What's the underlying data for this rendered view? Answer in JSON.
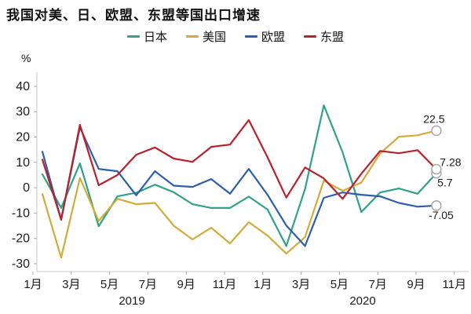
{
  "title": "我国对美、日、欧盟、东盟等国出口增速",
  "chart_data": {
    "type": "line",
    "y_unit": "%",
    "ylim": [
      -30,
      40
    ],
    "y_ticks": [
      40,
      30,
      20,
      10,
      0,
      -10,
      -20,
      -30
    ],
    "x_tick_labels": [
      "1月",
      "3月",
      "5月",
      "7月",
      "9月",
      "11月",
      "1月",
      "3月",
      "5月",
      "7月",
      "9月",
      "11月"
    ],
    "year_labels": [
      "2019",
      "2020"
    ],
    "grid": "off",
    "legend_position": "top-center",
    "categories": [
      "2019-01",
      "2019-02",
      "2019-03",
      "2019-04",
      "2019-05",
      "2019-06",
      "2019-07",
      "2019-08",
      "2019-09",
      "2019-10",
      "2019-11",
      "2019-12",
      "2020-01",
      "2020-02",
      "2020-03",
      "2020-04",
      "2020-05",
      "2020-06",
      "2020-07",
      "2020-08",
      "2020-09",
      "2020-10"
    ],
    "series": [
      {
        "name": "日本",
        "color": "#2FA287",
        "end_label": "5.7",
        "values": [
          5.3,
          -8.0,
          9.6,
          -15.2,
          -3.4,
          -2.0,
          1.2,
          -1.8,
          -6.5,
          -8.0,
          -8.0,
          -3.5,
          -8.6,
          -23.0,
          -0.5,
          32.5,
          14.0,
          -9.6,
          -1.9,
          -0.3,
          -2.4,
          5.7
        ]
      },
      {
        "name": "美国",
        "color": "#D1AC3B",
        "end_label": "22.5",
        "values": [
          -2.5,
          -27.6,
          3.8,
          -13.1,
          -4.4,
          -6.5,
          -6.0,
          -15.0,
          -20.4,
          -15.8,
          -22.0,
          -13.6,
          -18.9,
          -26.0,
          -19.5,
          2.8,
          -1.2,
          2.0,
          13.5,
          20.1,
          20.7,
          22.5
        ]
      },
      {
        "name": "欧盟",
        "color": "#2F5FA8",
        "end_label": "-7.05",
        "values": [
          14.2,
          -12.7,
          23.8,
          7.4,
          6.5,
          -3.0,
          6.5,
          0.8,
          0.3,
          3.4,
          -2.4,
          7.4,
          -2.8,
          -14.9,
          -23.0,
          -4.0,
          -1.9,
          -2.8,
          -3.4,
          -6.0,
          -7.5,
          -7.05
        ]
      },
      {
        "name": "东盟",
        "color": "#B8222D",
        "end_label": "7.28",
        "values": [
          11.1,
          -12.5,
          24.8,
          1.0,
          5.0,
          13.0,
          15.9,
          11.5,
          10.2,
          16.1,
          17.0,
          26.7,
          12.0,
          -3.9,
          8.0,
          3.7,
          -4.4,
          5.5,
          14.5,
          13.6,
          14.8,
          7.28
        ]
      }
    ],
    "colors": {
      "axis": "#C9C9C9",
      "tick": "#ABABAB",
      "text": "#1A1A1A",
      "marker_stroke": "#A3A3A3"
    }
  }
}
